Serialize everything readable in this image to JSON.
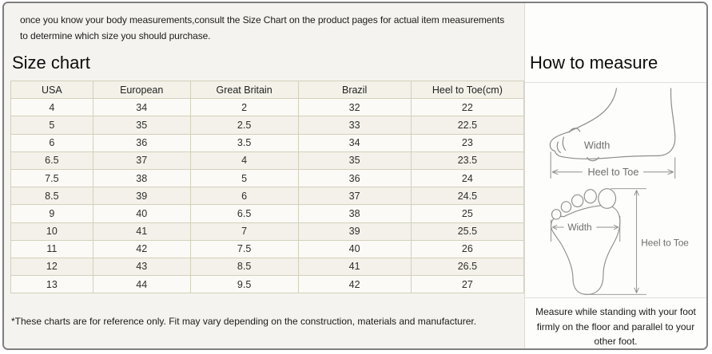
{
  "intro_text": "once you know your body measurements,consult the Size Chart on the product pages for actual item measurements to determine which size you should purchase.",
  "size_chart": {
    "title": "Size chart",
    "footnote": "*These charts are for reference only. Fit may vary depending on the construction, materials and manufacturer.",
    "table": {
      "columns": [
        "USA",
        "European",
        "Great Britain",
        "Brazil",
        "Heel to Toe(cm)"
      ],
      "rows": [
        [
          "4",
          "34",
          "2",
          "32",
          "22"
        ],
        [
          "5",
          "35",
          "2.5",
          "33",
          "22.5"
        ],
        [
          "6",
          "36",
          "3.5",
          "34",
          "23"
        ],
        [
          "6.5",
          "37",
          "4",
          "35",
          "23.5"
        ],
        [
          "7.5",
          "38",
          "5",
          "36",
          "24"
        ],
        [
          "8.5",
          "39",
          "6",
          "37",
          "24.5"
        ],
        [
          "9",
          "40",
          "6.5",
          "38",
          "25"
        ],
        [
          "10",
          "41",
          "7",
          "39",
          "25.5"
        ],
        [
          "11",
          "42",
          "7.5",
          "40",
          "26"
        ],
        [
          "12",
          "43",
          "8.5",
          "41",
          "26.5"
        ],
        [
          "13",
          "44",
          "9.5",
          "42",
          "27"
        ]
      ]
    }
  },
  "how_to_measure": {
    "title": "How to measure",
    "note": "Measure while standing with your foot firmly on the floor and parallel to your other foot.",
    "side_view": {
      "width_label": "Width",
      "length_label": "Heel to Toe"
    },
    "sole_view": {
      "width_label": "Width",
      "length_label": "Heel to Toe"
    }
  },
  "colors": {
    "frame_border": "#7f7f7f",
    "table_border": "#d3d0bb",
    "left_background": "#f4f3ef",
    "right_background": "#fdfdfb",
    "diagram_stroke": "#8e8e8e",
    "diagram_label": "#6d6d6d"
  }
}
